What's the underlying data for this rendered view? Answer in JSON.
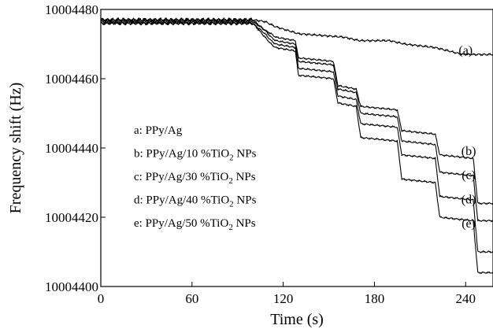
{
  "chart_data": {
    "type": "line",
    "title": "",
    "xlabel": "Time (s)",
    "ylabel": "Frequency shift (Hz)",
    "xlim": [
      0,
      258
    ],
    "ylim": [
      10004400,
      10004480
    ],
    "x_ticks": [
      0,
      60,
      120,
      180,
      240
    ],
    "y_ticks": [
      10004400,
      10004420,
      10004440,
      10004460,
      10004480
    ],
    "x_tick_labels": [
      "0",
      "60",
      "120",
      "180",
      "240"
    ],
    "y_tick_labels": [
      "10004400",
      "10004420",
      "10004440",
      "10004460",
      "10004480"
    ],
    "grid": false,
    "legend_position": "left",
    "legend": [
      {
        "key": "a",
        "prefix": "a: PPy/Ag",
        "sub": "",
        "suffix": ""
      },
      {
        "key": "b",
        "prefix": "b: PPy/Ag/10 %TiO",
        "sub": "2",
        "suffix": " NPs"
      },
      {
        "key": "c",
        "prefix": "c: PPy/Ag/30 %TiO",
        "sub": "2",
        "suffix": " NPs"
      },
      {
        "key": "d",
        "prefix": "d: PPy/Ag/40 %TiO",
        "sub": "2",
        "suffix": " NPs"
      },
      {
        "key": "e",
        "prefix": "e: PPy/Ag/50 %TiO",
        "sub": "2",
        "suffix": " NPs"
      }
    ],
    "curve_labels": [
      {
        "key": "a",
        "text": "(a)",
        "x": 240,
        "y": 10004467
      },
      {
        "key": "b",
        "text": "(b)",
        "x": 242,
        "y": 10004438
      },
      {
        "key": "c",
        "text": "(c)",
        "x": 242,
        "y": 10004431
      },
      {
        "key": "d",
        "text": "(d)",
        "x": 242,
        "y": 10004424
      },
      {
        "key": "e",
        "text": "(e)",
        "x": 242,
        "y": 10004417
      }
    ],
    "line_color": "#000000",
    "series": [
      {
        "key": "a",
        "noise": 0.6,
        "x": [
          0,
          100,
          108,
          115,
          130,
          160,
          170,
          190,
          200,
          220,
          238,
          258
        ],
        "y": [
          10004477,
          10004477,
          10004476.5,
          10004475,
          10004473,
          10004472,
          10004471,
          10004471,
          10004470,
          10004469,
          10004467,
          10004467
        ]
      },
      {
        "key": "b",
        "noise": 0.5,
        "x": [
          0,
          100,
          108,
          112,
          115,
          128,
          130,
          153,
          156,
          168,
          171,
          195,
          198,
          220,
          223,
          245,
          248,
          258
        ],
        "y": [
          10004477,
          10004477,
          10004474,
          10004473,
          10004472,
          10004471,
          10004466,
          10004465,
          10004458,
          10004457,
          10004452,
          10004451,
          10004445,
          10004444,
          10004438,
          10004437,
          10004424,
          10004424
        ]
      },
      {
        "key": "c",
        "noise": 0.5,
        "x": [
          0,
          100,
          108,
          112,
          115,
          128,
          130,
          153,
          156,
          168,
          171,
          195,
          198,
          220,
          223,
          245,
          248,
          258
        ],
        "y": [
          10004476.5,
          10004476.5,
          10004474,
          10004472,
          10004471,
          10004470,
          10004465,
          10004464,
          10004457,
          10004456,
          10004450,
          10004449,
          10004442,
          10004441,
          10004433,
          10004432,
          10004419,
          10004419
        ]
      },
      {
        "key": "d",
        "noise": 0.5,
        "x": [
          0,
          100,
          108,
          112,
          115,
          128,
          130,
          153,
          156,
          168,
          171,
          195,
          198,
          220,
          223,
          245,
          248,
          258
        ],
        "y": [
          10004476,
          10004476,
          10004473,
          10004471,
          10004470,
          10004469,
          10004463,
          10004462,
          10004455,
          10004454,
          10004447,
          10004446,
          10004438,
          10004437,
          10004426,
          10004425,
          10004410,
          10004410
        ]
      },
      {
        "key": "e",
        "noise": 0.5,
        "x": [
          0,
          100,
          108,
          112,
          115,
          128,
          130,
          153,
          156,
          168,
          171,
          195,
          198,
          220,
          223,
          245,
          248,
          258
        ],
        "y": [
          10004476,
          10004476,
          10004472,
          10004470,
          10004469,
          10004468,
          10004461,
          10004460,
          10004453,
          10004452,
          10004443,
          10004442,
          10004431,
          10004430,
          10004420,
          10004419,
          10004404,
          10004404
        ]
      }
    ]
  }
}
